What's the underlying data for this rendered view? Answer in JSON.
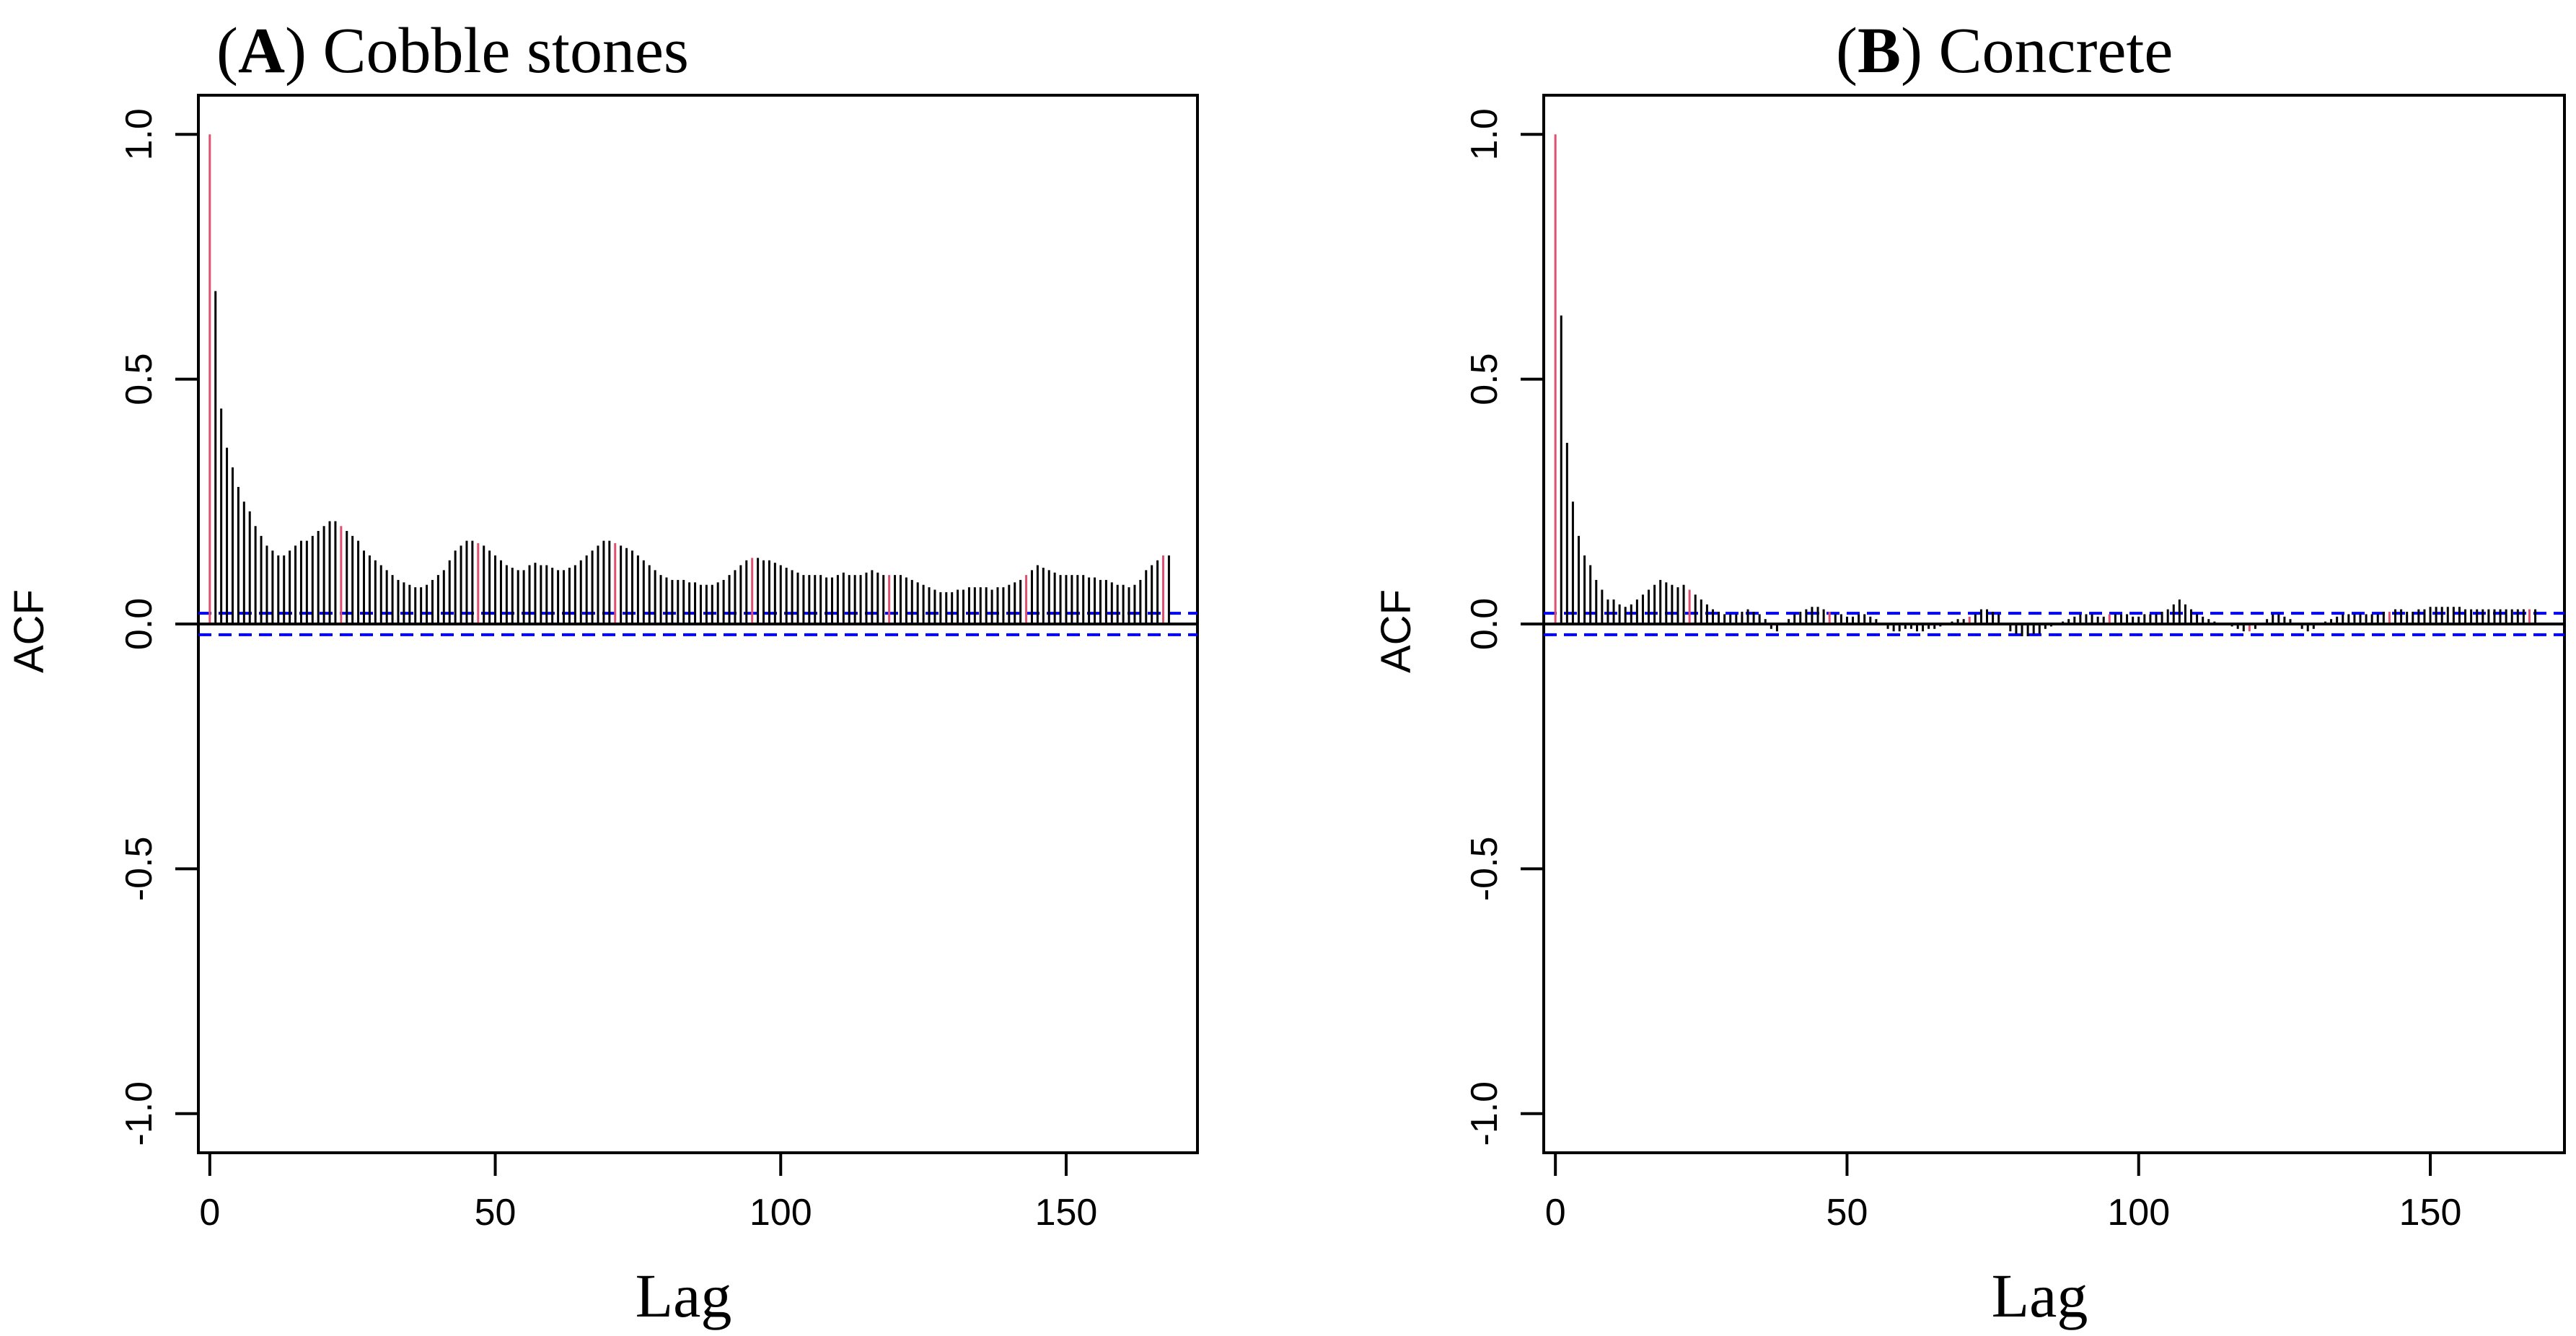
{
  "chart_data": [
    {
      "type": "bar",
      "panel_letter": "A",
      "title": "Cobble stones",
      "xlabel": "Lag",
      "ylabel": "ACF",
      "xlim": [
        -2,
        173
      ],
      "ylim": [
        -1.08,
        1.08
      ],
      "x_ticks": [
        "0",
        "50",
        "100",
        "150"
      ],
      "y_ticks": [
        "-1.0",
        "-0.5",
        "0.0",
        "0.5",
        "1.0"
      ],
      "confidence_bound": 0.022,
      "lags": [
        0,
        1,
        2,
        3,
        4,
        5,
        6,
        7,
        8,
        9,
        10,
        11,
        12,
        13,
        14,
        15,
        16,
        17,
        18,
        19,
        20,
        21,
        22,
        23,
        24,
        25,
        26,
        27,
        28,
        29,
        30,
        31,
        32,
        33,
        34,
        35,
        36,
        37,
        38,
        39,
        40,
        41,
        42,
        43,
        44,
        45,
        46,
        47,
        48,
        49,
        50,
        51,
        52,
        53,
        54,
        55,
        56,
        57,
        58,
        59,
        60,
        61,
        62,
        63,
        64,
        65,
        66,
        67,
        68,
        69,
        70,
        71,
        72,
        73,
        74,
        75,
        76,
        77,
        78,
        79,
        80,
        81,
        82,
        83,
        84,
        85,
        86,
        87,
        88,
        89,
        90,
        91,
        92,
        93,
        94,
        95,
        96,
        97,
        98,
        99,
        100,
        101,
        102,
        103,
        104,
        105,
        106,
        107,
        108,
        109,
        110,
        111,
        112,
        113,
        114,
        115,
        116,
        117,
        118,
        119,
        120,
        121,
        122,
        123,
        124,
        125,
        126,
        127,
        128,
        129,
        130,
        131,
        132,
        133,
        134,
        135,
        136,
        137,
        138,
        139,
        140,
        141,
        142,
        143,
        144,
        145,
        146,
        147,
        148,
        149,
        150,
        151,
        152,
        153,
        154,
        155,
        156,
        157,
        158,
        159,
        160,
        161,
        162,
        163,
        164,
        165,
        166,
        167,
        168
      ],
      "acf": [
        1.0,
        0.68,
        0.44,
        0.36,
        0.32,
        0.28,
        0.25,
        0.23,
        0.2,
        0.18,
        0.16,
        0.15,
        0.14,
        0.14,
        0.15,
        0.16,
        0.17,
        0.17,
        0.18,
        0.19,
        0.2,
        0.21,
        0.21,
        0.2,
        0.19,
        0.18,
        0.17,
        0.15,
        0.14,
        0.13,
        0.12,
        0.11,
        0.1,
        0.09,
        0.085,
        0.08,
        0.075,
        0.075,
        0.08,
        0.09,
        0.1,
        0.11,
        0.13,
        0.15,
        0.16,
        0.17,
        0.17,
        0.165,
        0.16,
        0.15,
        0.14,
        0.13,
        0.12,
        0.115,
        0.11,
        0.11,
        0.12,
        0.125,
        0.12,
        0.12,
        0.115,
        0.11,
        0.11,
        0.115,
        0.12,
        0.13,
        0.14,
        0.15,
        0.16,
        0.17,
        0.17,
        0.165,
        0.16,
        0.155,
        0.15,
        0.14,
        0.13,
        0.12,
        0.11,
        0.1,
        0.095,
        0.09,
        0.09,
        0.09,
        0.085,
        0.085,
        0.08,
        0.08,
        0.08,
        0.085,
        0.09,
        0.1,
        0.11,
        0.12,
        0.13,
        0.135,
        0.135,
        0.13,
        0.13,
        0.125,
        0.12,
        0.115,
        0.11,
        0.105,
        0.1,
        0.1,
        0.1,
        0.1,
        0.095,
        0.095,
        0.1,
        0.105,
        0.1,
        0.1,
        0.1,
        0.105,
        0.11,
        0.105,
        0.1,
        0.1,
        0.1,
        0.1,
        0.095,
        0.09,
        0.085,
        0.08,
        0.075,
        0.07,
        0.065,
        0.065,
        0.065,
        0.07,
        0.07,
        0.075,
        0.075,
        0.075,
        0.075,
        0.07,
        0.075,
        0.075,
        0.08,
        0.085,
        0.09,
        0.1,
        0.11,
        0.12,
        0.115,
        0.11,
        0.105,
        0.1,
        0.1,
        0.1,
        0.1,
        0.1,
        0.095,
        0.095,
        0.09,
        0.09,
        0.085,
        0.08,
        0.08,
        0.075,
        0.08,
        0.09,
        0.11,
        0.12,
        0.13,
        0.14,
        0.14
      ],
      "highlight_lags": [
        0,
        23,
        47,
        71,
        95,
        119,
        143,
        167
      ]
    },
    {
      "type": "bar",
      "panel_letter": "B",
      "title": "Concrete",
      "xlabel": "Lag",
      "ylabel": "ACF",
      "xlim": [
        -2,
        173
      ],
      "ylim": [
        -1.08,
        1.08
      ],
      "x_ticks": [
        "0",
        "50",
        "100",
        "150"
      ],
      "y_ticks": [
        "-1.0",
        "-0.5",
        "0.0",
        "0.5",
        "1.0"
      ],
      "confidence_bound": 0.022,
      "lags": [
        0,
        1,
        2,
        3,
        4,
        5,
        6,
        7,
        8,
        9,
        10,
        11,
        12,
        13,
        14,
        15,
        16,
        17,
        18,
        19,
        20,
        21,
        22,
        23,
        24,
        25,
        26,
        27,
        28,
        29,
        30,
        31,
        32,
        33,
        34,
        35,
        36,
        37,
        38,
        39,
        40,
        41,
        42,
        43,
        44,
        45,
        46,
        47,
        48,
        49,
        50,
        51,
        52,
        53,
        54,
        55,
        56,
        57,
        58,
        59,
        60,
        61,
        62,
        63,
        64,
        65,
        66,
        67,
        68,
        69,
        70,
        71,
        72,
        73,
        74,
        75,
        76,
        77,
        78,
        79,
        80,
        81,
        82,
        83,
        84,
        85,
        86,
        87,
        88,
        89,
        90,
        91,
        92,
        93,
        94,
        95,
        96,
        97,
        98,
        99,
        100,
        101,
        102,
        103,
        104,
        105,
        106,
        107,
        108,
        109,
        110,
        111,
        112,
        113,
        114,
        115,
        116,
        117,
        118,
        119,
        120,
        121,
        122,
        123,
        124,
        125,
        126,
        127,
        128,
        129,
        130,
        131,
        132,
        133,
        134,
        135,
        136,
        137,
        138,
        139,
        140,
        141,
        142,
        143,
        144,
        145,
        146,
        147,
        148,
        149,
        150,
        151,
        152,
        153,
        154,
        155,
        156,
        157,
        158,
        159,
        160,
        161,
        162,
        163,
        164,
        165,
        166,
        167,
        168
      ],
      "acf": [
        1.0,
        0.63,
        0.37,
        0.25,
        0.18,
        0.14,
        0.12,
        0.09,
        0.07,
        0.05,
        0.05,
        0.04,
        0.035,
        0.04,
        0.05,
        0.06,
        0.07,
        0.08,
        0.09,
        0.085,
        0.08,
        0.075,
        0.08,
        0.07,
        0.06,
        0.05,
        0.04,
        0.03,
        0.025,
        0.02,
        0.02,
        0.02,
        0.025,
        0.03,
        0.025,
        0.02,
        0.01,
        -0.01,
        -0.015,
        0.0,
        0.01,
        0.02,
        0.025,
        0.03,
        0.035,
        0.035,
        0.03,
        0.025,
        0.02,
        0.02,
        0.015,
        0.015,
        0.02,
        0.02,
        0.015,
        0.01,
        0.0,
        -0.01,
        -0.015,
        -0.015,
        -0.01,
        -0.01,
        -0.015,
        -0.015,
        -0.01,
        -0.01,
        -0.005,
        0.0,
        0.005,
        0.01,
        0.01,
        0.015,
        0.02,
        0.03,
        0.03,
        0.025,
        0.02,
        0.0,
        -0.015,
        -0.02,
        -0.025,
        -0.025,
        -0.02,
        -0.02,
        -0.01,
        -0.005,
        0.0,
        0.005,
        0.01,
        0.015,
        0.02,
        0.02,
        0.02,
        0.015,
        0.015,
        0.02,
        0.02,
        0.02,
        0.02,
        0.015,
        0.015,
        0.02,
        0.02,
        0.02,
        0.025,
        0.03,
        0.04,
        0.05,
        0.04,
        0.03,
        0.02,
        0.015,
        0.01,
        0.005,
        0.0,
        0.0,
        -0.005,
        -0.01,
        -0.015,
        -0.015,
        -0.01,
        0.0,
        0.01,
        0.02,
        0.02,
        0.015,
        0.01,
        0.0,
        -0.01,
        -0.015,
        -0.01,
        0.0,
        0.005,
        0.01,
        0.015,
        0.02,
        0.02,
        0.02,
        0.02,
        0.02,
        0.02,
        0.02,
        0.025,
        0.025,
        0.03,
        0.03,
        0.025,
        0.025,
        0.03,
        0.03,
        0.035,
        0.035,
        0.035,
        0.035,
        0.035,
        0.035,
        0.03,
        0.03,
        0.03,
        0.03,
        0.03,
        0.03,
        0.03,
        0.03,
        0.03,
        0.03,
        0.03,
        0.03,
        0.03,
        0.03
      ],
      "highlight_lags": [
        0,
        23,
        47,
        71,
        95,
        119,
        143,
        167
      ]
    }
  ],
  "colors": {
    "bar": "#000000",
    "highlight_bar": "#e0506e",
    "confidence_line": "#0000ee",
    "axis": "#000000"
  }
}
